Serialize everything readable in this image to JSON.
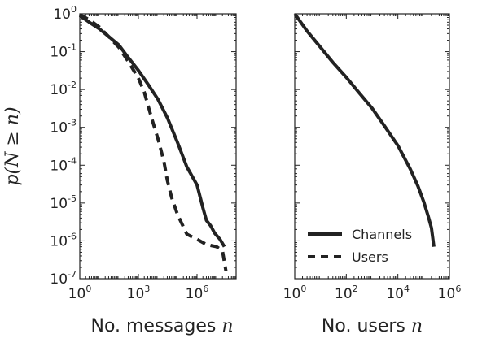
{
  "chart_data": [
    {
      "type": "line",
      "xscale": "log",
      "yscale": "log",
      "xlim": [
        1,
        100000000
      ],
      "ylim": [
        1e-07,
        1
      ],
      "xlabel": "No. messages",
      "xlabel_var": "n",
      "ylabel": "p(N ≥ n)",
      "xticks": [
        {
          "base": "10",
          "exp": "0",
          "value": 1
        },
        {
          "base": "10",
          "exp": "3",
          "value": 1000
        },
        {
          "base": "10",
          "exp": "6",
          "value": 1000000
        }
      ],
      "yticks": [
        {
          "base": "10",
          "exp": "0",
          "value": 1
        },
        {
          "base": "10",
          "exp": "-1",
          "value": 0.1
        },
        {
          "base": "10",
          "exp": "-2",
          "value": 0.01
        },
        {
          "base": "10",
          "exp": "-3",
          "value": 0.001
        },
        {
          "base": "10",
          "exp": "-4",
          "value": 0.0001
        },
        {
          "base": "10",
          "exp": "-5",
          "value": 1e-05
        },
        {
          "base": "10",
          "exp": "-6",
          "value": 1e-06
        },
        {
          "base": "10",
          "exp": "-7",
          "value": 1e-07
        }
      ],
      "series": [
        {
          "name": "Channels",
          "style": "solid",
          "x": [
            1,
            3,
            10,
            30,
            100,
            300,
            1000,
            3000,
            10000,
            30000,
            100000,
            300000,
            1000000,
            2000000,
            3000000,
            5000000,
            8000000,
            15000000,
            25000000
          ],
          "y": [
            0.9,
            0.6,
            0.4,
            0.25,
            0.15,
            0.07,
            0.032,
            0.014,
            0.0055,
            0.0018,
            0.0004,
            9e-05,
            3e-05,
            7.5e-06,
            3.5e-06,
            2.5e-06,
            1.6e-06,
            1.1e-06,
            7e-07
          ]
        },
        {
          "name": "Users",
          "style": "dashed",
          "x": [
            1,
            3,
            10,
            30,
            100,
            300,
            1000,
            2000,
            3000,
            5000,
            10000,
            20000,
            30000,
            50000,
            100000,
            300000,
            1000000,
            3000000,
            10000000,
            20000000,
            30000000
          ],
          "y": [
            0.95,
            0.7,
            0.45,
            0.25,
            0.13,
            0.055,
            0.02,
            0.0085,
            0.004,
            0.0016,
            0.0005,
            0.00013,
            4e-05,
            1.4e-05,
            5e-06,
            1.5e-06,
            1.1e-06,
            8e-07,
            7e-07,
            5.5e-07,
            1.6e-07
          ]
        }
      ]
    },
    {
      "type": "line",
      "xscale": "log",
      "yscale": "log",
      "xlim": [
        1,
        1000000
      ],
      "ylim": [
        1e-07,
        1
      ],
      "xlabel": "No. users",
      "xlabel_var": "n",
      "xticks": [
        {
          "base": "10",
          "exp": "0",
          "value": 1
        },
        {
          "base": "10",
          "exp": "2",
          "value": 100
        },
        {
          "base": "10",
          "exp": "4",
          "value": 10000
        },
        {
          "base": "10",
          "exp": "6",
          "value": 1000000
        }
      ],
      "series": [
        {
          "name": "Channels",
          "style": "solid",
          "x": [
            1,
            3,
            10,
            30,
            100,
            300,
            1000,
            3000,
            10000,
            30000,
            60000,
            100000,
            150000,
            200000,
            250000
          ],
          "y": [
            1,
            0.35,
            0.13,
            0.052,
            0.021,
            0.0085,
            0.0032,
            0.0011,
            0.00033,
            8e-05,
            2.8e-05,
            1.1e-05,
            4.5e-06,
            2.2e-06,
            7e-07
          ]
        }
      ],
      "legend": {
        "position": "lower-left",
        "entries": [
          {
            "label": "Channels",
            "style": "solid"
          },
          {
            "label": "Users",
            "style": "dashed"
          }
        ]
      }
    }
  ]
}
